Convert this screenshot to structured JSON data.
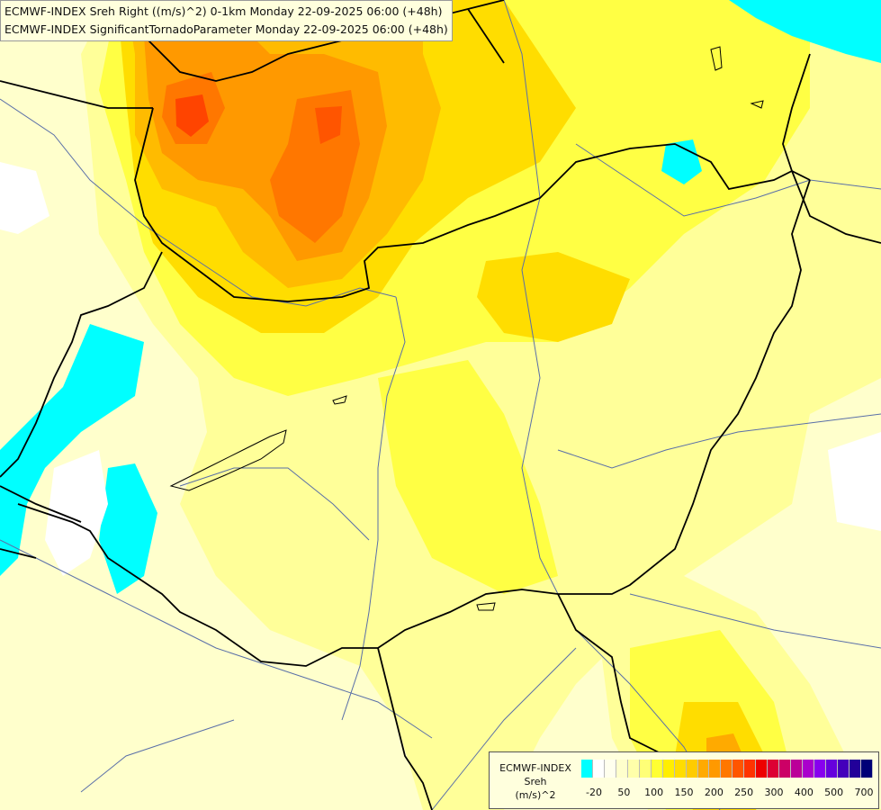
{
  "header": {
    "line1": "ECMWF-INDEX Sreh Right ((m/s)^2) 0-1km Monday 22-09-2025 06:00 (+48h)",
    "line2": "ECMWF-INDEX SignificantTornadoParameter Monday 22-09-2025 06:00 (+48h)"
  },
  "legend": {
    "title1": "ECMWF-INDEX",
    "title2": "Sreh",
    "title3": "(m/s)^2",
    "colors": [
      "#00ffff",
      "#ffffff",
      "#ffffee",
      "#ffffcc",
      "#ffffaa",
      "#ffff77",
      "#ffff33",
      "#ffee00",
      "#ffdd00",
      "#ffcc00",
      "#ffaa00",
      "#ff9900",
      "#ff7700",
      "#ff5500",
      "#ff3300",
      "#ee0000",
      "#dd0033",
      "#cc0066",
      "#bb0099",
      "#aa00cc",
      "#8800ee",
      "#6600dd",
      "#4400bb",
      "#220099",
      "#000077"
    ],
    "tick_labels": [
      "-20",
      "50",
      "100",
      "150",
      "200",
      "250",
      "300",
      "400",
      "500",
      "700"
    ]
  },
  "colors": {
    "border": "#000000",
    "river": "#5a6fa8",
    "cyan": "#00ffff"
  }
}
